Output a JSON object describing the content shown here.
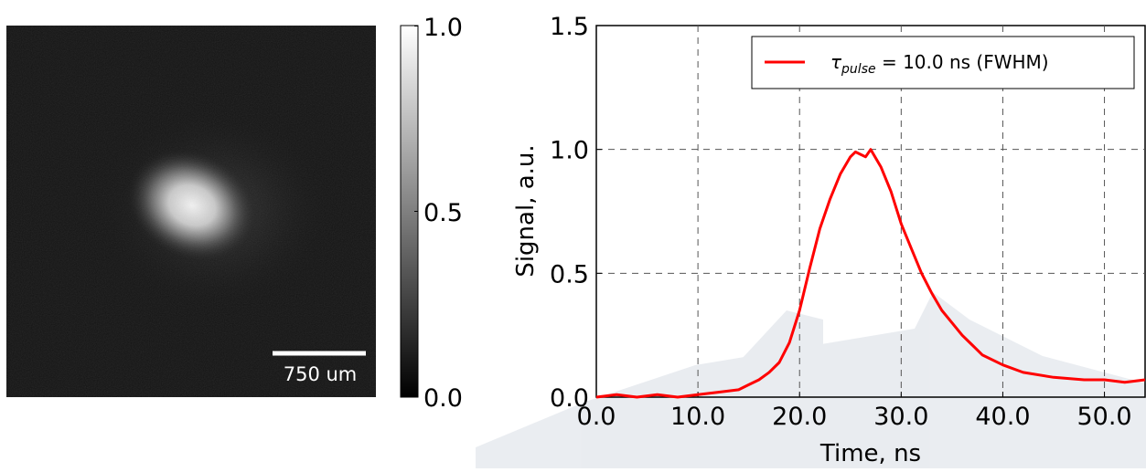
{
  "image_panel": {
    "scalebar_label": "750 um",
    "colorbar_ticks": [
      "1.0",
      "0.5",
      "0.0"
    ]
  },
  "chart_data": {
    "type": "line",
    "xlabel": "Time, ns",
    "ylabel": "Signal, a.u.",
    "xlim": [
      0,
      54
    ],
    "ylim": [
      0,
      1.5
    ],
    "xticks": [
      "0.0",
      "10.0",
      "20.0",
      "30.0",
      "40.0",
      "50.0"
    ],
    "yticks": [
      "0.0",
      "0.5",
      "1.0",
      "1.5"
    ],
    "grid": true,
    "legend_position": "top-right",
    "series": [
      {
        "name": "τpulse = 10.0 ns (FWHM)",
        "legend_symbol": "τ",
        "legend_subscript": "pulse",
        "legend_rest": " = 10.0 ns (FWHM)",
        "color": "#ff0000",
        "x": [
          0,
          2,
          4,
          6,
          8,
          10,
          12,
          14,
          15,
          16,
          17,
          18,
          19,
          20,
          21,
          22,
          23,
          24,
          25,
          25.5,
          26,
          26.5,
          27,
          28,
          29,
          30,
          31,
          32,
          33,
          34,
          35,
          36,
          37,
          38,
          40,
          42,
          45,
          48,
          50,
          52,
          54
        ],
        "y": [
          0.0,
          0.01,
          0.0,
          0.01,
          0.0,
          0.01,
          0.02,
          0.03,
          0.05,
          0.07,
          0.1,
          0.14,
          0.22,
          0.35,
          0.52,
          0.68,
          0.8,
          0.9,
          0.97,
          0.99,
          0.98,
          0.97,
          1.0,
          0.93,
          0.83,
          0.7,
          0.6,
          0.5,
          0.42,
          0.35,
          0.3,
          0.25,
          0.21,
          0.17,
          0.13,
          0.1,
          0.08,
          0.07,
          0.07,
          0.06,
          0.07
        ]
      }
    ]
  }
}
